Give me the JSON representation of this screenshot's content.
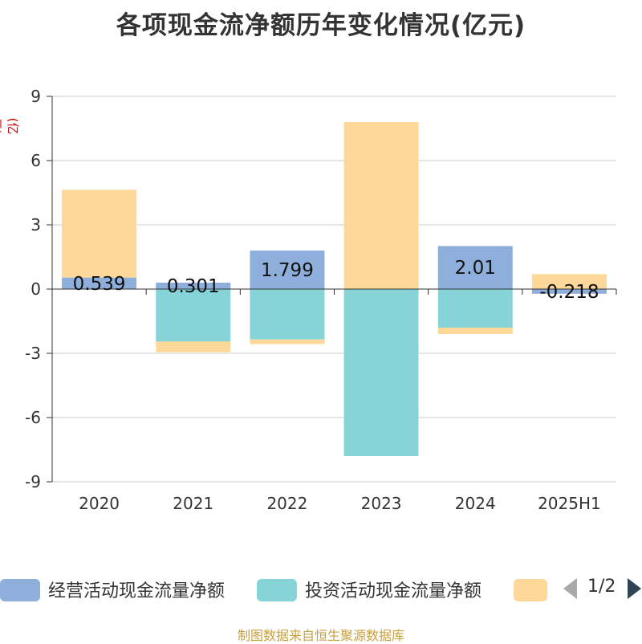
{
  "title": "各项现金流净额历年变化情况(亿元)",
  "y_unit": "(亿元)",
  "source": "制图数据来自恒生聚源数据库",
  "legend": {
    "items": [
      {
        "label": "经营活动现金流量净额",
        "color": "#8eaedb"
      },
      {
        "label": "投资活动现金流量净额",
        "color": "#86d4d8"
      },
      {
        "label": "",
        "color": "#fdd898"
      }
    ],
    "page": "1/2"
  },
  "chart_data": {
    "type": "bar",
    "stacked": true,
    "categories": [
      "2020",
      "2021",
      "2022",
      "2023",
      "2024",
      "2025H1"
    ],
    "ylim": [
      -9,
      9
    ],
    "yticks": [
      9,
      6,
      3,
      0,
      -3,
      -6,
      -9
    ],
    "grid": true,
    "legend_position": "bottom",
    "series": [
      {
        "name": "经营活动现金流量净额",
        "color": "#8eaedb",
        "values": [
          0.539,
          0.301,
          1.799,
          0.0,
          2.01,
          -0.218
        ],
        "labels": [
          "0.539",
          "0.301",
          "1.799",
          "",
          "2.01",
          "-0.218"
        ]
      },
      {
        "name": "投资活动现金流量净额",
        "color": "#86d4d8",
        "values": [
          0.0,
          -2.45,
          -2.35,
          -7.8,
          -1.8,
          0.0
        ]
      },
      {
        "name": "",
        "color": "#fdd898",
        "values": [
          4.1,
          -0.5,
          -0.22,
          7.8,
          -0.3,
          0.7
        ]
      }
    ]
  }
}
